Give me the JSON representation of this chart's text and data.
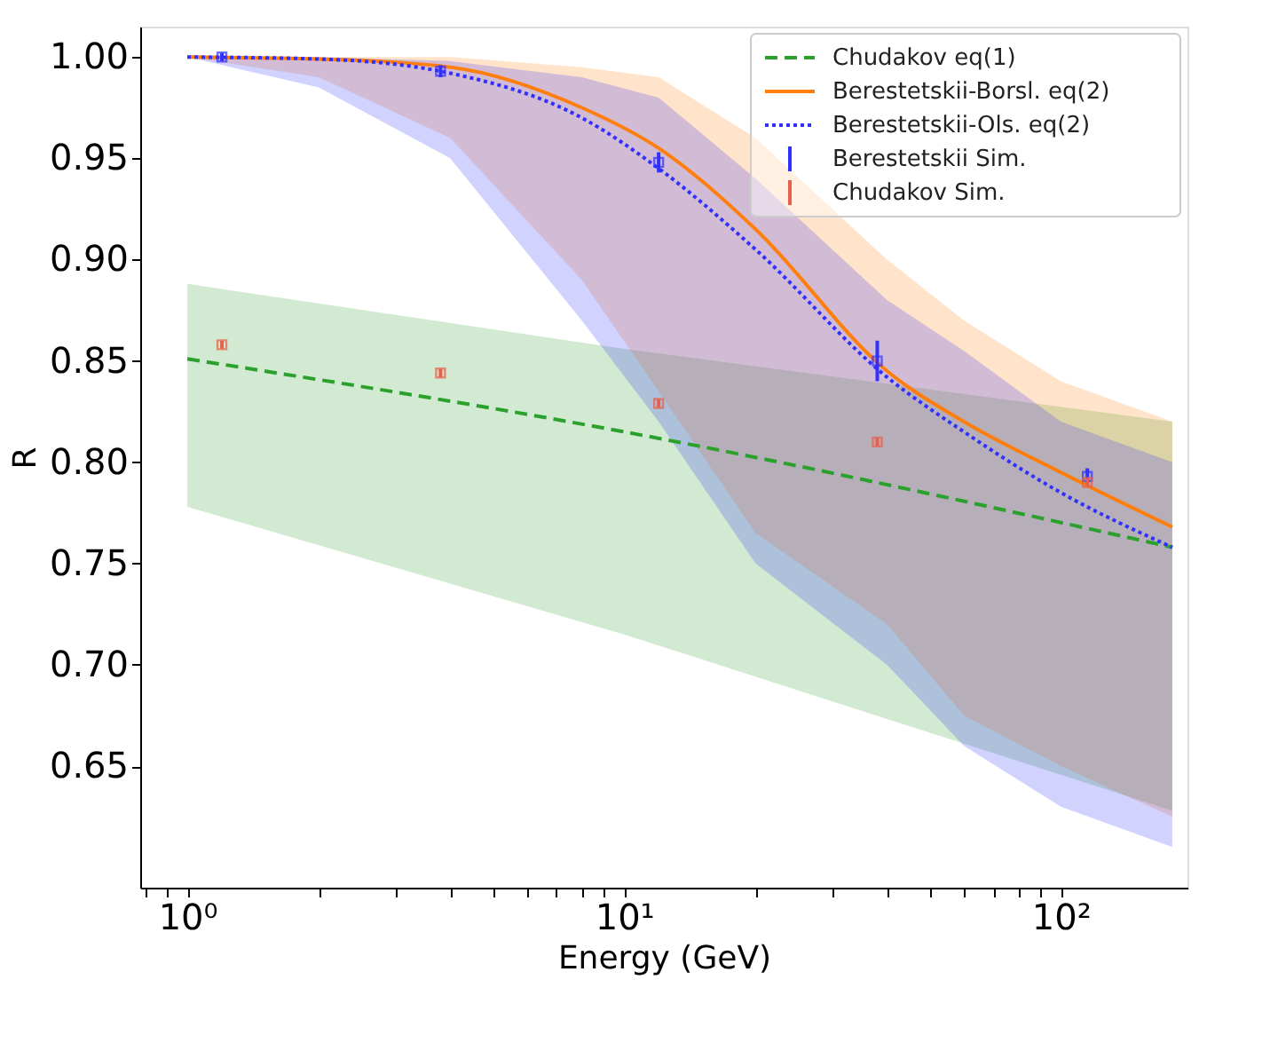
{
  "chart_data": {
    "type": "line",
    "xlabel": "Energy (GeV)",
    "ylabel": "R",
    "log": "x",
    "grid": false,
    "legend": "top right",
    "xlim": [
      0.78,
      195
    ],
    "ylim": [
      0.59,
      1.015
    ],
    "xticks": [
      {
        "value": 0.8,
        "label": null
      },
      {
        "value": 0.9,
        "label": null
      },
      {
        "value": 1,
        "label": "10⁰"
      },
      {
        "value": 2,
        "label": null
      },
      {
        "value": 3,
        "label": null
      },
      {
        "value": 4,
        "label": null
      },
      {
        "value": 5,
        "label": null
      },
      {
        "value": 6,
        "label": null
      },
      {
        "value": 7,
        "label": null
      },
      {
        "value": 8,
        "label": null
      },
      {
        "value": 9,
        "label": null
      },
      {
        "value": 10,
        "label": "10¹"
      },
      {
        "value": 20,
        "label": null
      },
      {
        "value": 30,
        "label": null
      },
      {
        "value": 40,
        "label": null
      },
      {
        "value": 50,
        "label": null
      },
      {
        "value": 60,
        "label": null
      },
      {
        "value": 70,
        "label": null
      },
      {
        "value": 80,
        "label": null
      },
      {
        "value": 90,
        "label": null
      },
      {
        "value": 100,
        "label": "10²"
      }
    ],
    "yticks": [
      {
        "value": 0.65,
        "label": "0.65"
      },
      {
        "value": 0.7,
        "label": "0.70"
      },
      {
        "value": 0.75,
        "label": "0.75"
      },
      {
        "value": 0.8,
        "label": "0.80"
      },
      {
        "value": 0.85,
        "label": "0.85"
      },
      {
        "value": 0.9,
        "label": "0.90"
      },
      {
        "value": 0.95,
        "label": "0.95"
      },
      {
        "value": 1.0,
        "label": "1.00"
      }
    ],
    "series": [
      {
        "name": "Chudakov eq(1)",
        "line_style": "dashed",
        "color": "#2ca02c",
        "x": [
          1,
          10,
          180
        ],
        "values": [
          0.851,
          0.815,
          0.758
        ],
        "lower": [
          0.778,
          0.715,
          0.628
        ],
        "upper": [
          0.888,
          0.856,
          0.82
        ]
      },
      {
        "name": "Berestetskii-Borsl. eq(2)",
        "line_style": "solid",
        "color": "#ff7f0e",
        "x": [
          1,
          2,
          4,
          8,
          12,
          20,
          40,
          60,
          100,
          180
        ],
        "values": [
          1.0,
          0.999,
          0.995,
          0.975,
          0.955,
          0.915,
          0.845,
          0.82,
          0.795,
          0.768
        ],
        "lower": [
          1.0,
          0.99,
          0.96,
          0.89,
          0.835,
          0.765,
          0.72,
          0.675,
          0.65,
          0.625
        ],
        "upper": [
          1.0,
          1.0,
          1.0,
          0.995,
          0.99,
          0.96,
          0.9,
          0.87,
          0.84,
          0.82
        ]
      },
      {
        "name": "Berestetskii-Ols. eq(2)",
        "line_style": "dotted",
        "color": "#3030ff",
        "x": [
          1,
          2,
          4,
          8,
          12,
          20,
          40,
          60,
          100,
          180
        ],
        "values": [
          1.0,
          0.999,
          0.992,
          0.97,
          0.945,
          0.905,
          0.842,
          0.815,
          0.785,
          0.758
        ],
        "lower": [
          1.0,
          0.985,
          0.95,
          0.87,
          0.82,
          0.75,
          0.7,
          0.66,
          0.63,
          0.61
        ],
        "upper": [
          1.0,
          1.0,
          0.998,
          0.99,
          0.98,
          0.94,
          0.88,
          0.855,
          0.82,
          0.8
        ]
      },
      {
        "name": "Berestetskii Sim.",
        "type": "scatter",
        "marker": "square",
        "color": "#3030ff",
        "x": [
          1.2,
          3.8,
          12,
          38,
          115
        ],
        "values": [
          1.0,
          0.993,
          0.948,
          0.85,
          0.793
        ],
        "errors": [
          0.002,
          0.003,
          0.005,
          0.01,
          0.004
        ]
      },
      {
        "name": "Chudakov Sim.",
        "type": "scatter",
        "marker": "square",
        "color": "#e8604c",
        "x": [
          1.2,
          3.8,
          12,
          38,
          115
        ],
        "values": [
          0.858,
          0.844,
          0.829,
          0.81,
          0.79
        ],
        "errors": [
          0.002,
          0.002,
          0.002,
          0.002,
          0.002
        ]
      }
    ]
  }
}
